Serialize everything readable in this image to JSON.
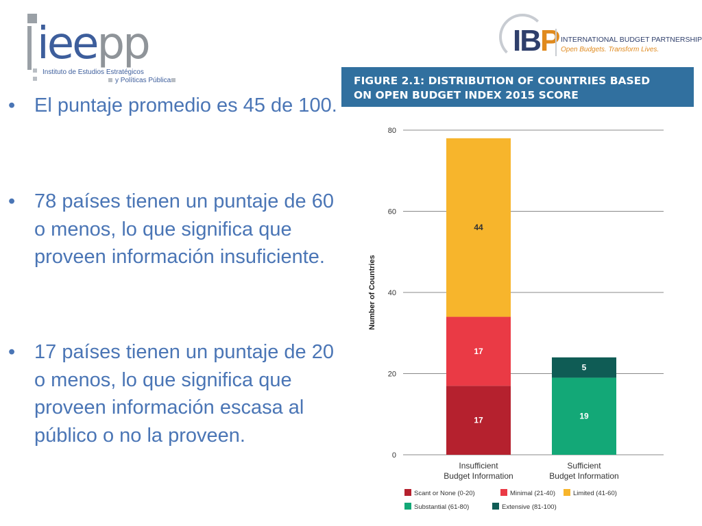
{
  "logos": {
    "ieepp": {
      "wordmark_a": "iee",
      "wordmark_b": "pp",
      "line1": "Instituto de Estudios Estratégicos",
      "line2": "y Políticas Públicas"
    },
    "ibp": {
      "mark_a": "IB",
      "mark_b": "P",
      "name": "INTERNATIONAL BUDGET PARTNERSHIP",
      "tagline": "Open Budgets. Transform Lives."
    }
  },
  "bullets": [
    {
      "symbol": "•",
      "text": "El puntaje promedio es 45 de 100."
    },
    {
      "symbol": "•",
      "text": "78 países tienen un puntaje de 60 o menos, lo que significa que proveen información insuficiente."
    },
    {
      "symbol": "•",
      "text": "17 países tienen un puntaje de 20 o menos, lo que significa que proveen información escasa al público o no la proveen."
    }
  ],
  "colors": {
    "scant": "#b5212e",
    "minimal": "#ea3a45",
    "limited": "#f7b52c",
    "substantial": "#13a877",
    "extensive": "#0f5c55",
    "header": "#31709f",
    "bullet_text": "#4a75b5"
  },
  "chart_data": {
    "type": "bar",
    "stacked": true,
    "title": "FIGURE 2.1: DISTRIBUTION OF COUNTRIES BASED ON OPEN BUDGET INDEX 2015 SCORE",
    "title_line1": "FIGURE 2.1: DISTRIBUTION OF COUNTRIES BASED",
    "title_line2": "ON OPEN BUDGET INDEX 2015 SCORE",
    "ylabel": "Number of Countries",
    "ylim": [
      0,
      80
    ],
    "yticks": [
      0,
      20,
      40,
      60,
      80
    ],
    "grid": true,
    "categories": [
      [
        "Insufficient",
        "Budget Information"
      ],
      [
        "Sufficient",
        "Budget Information"
      ]
    ],
    "series": [
      {
        "name": "Scant or None (0-20)",
        "color_key": "scant",
        "values": [
          17,
          0
        ]
      },
      {
        "name": "Minimal (21-40)",
        "color_key": "minimal",
        "values": [
          17,
          0
        ]
      },
      {
        "name": "Limited (41-60)",
        "color_key": "limited",
        "values": [
          44,
          0
        ]
      },
      {
        "name": "Substantial (61-80)",
        "color_key": "substantial",
        "values": [
          0,
          19
        ]
      },
      {
        "name": "Extensive (81-100)",
        "color_key": "extensive",
        "values": [
          0,
          5
        ]
      }
    ],
    "legend_position": "bottom"
  }
}
